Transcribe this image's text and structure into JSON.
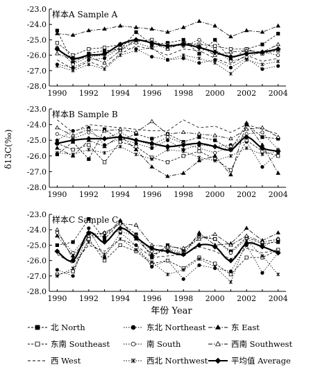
{
  "figure": {
    "ylabel": "δ13C(‰)",
    "xlabel": "年份 Year"
  },
  "chart_data": [
    {
      "type": "line",
      "title": "样本A Sample A",
      "ylim": [
        -28.0,
        -23.0
      ],
      "yticks": [
        -23.0,
        -24.0,
        -25.0,
        -26.0,
        -27.0,
        -28.0
      ],
      "xlim": [
        1989.5,
        2004.5
      ],
      "xticks": [
        1990,
        1992,
        1994,
        1996,
        1998,
        2000,
        2002,
        2004
      ],
      "x": [
        1990,
        1991,
        1992,
        1993,
        1994,
        1995,
        1996,
        1997,
        1998,
        1999,
        2000,
        2001,
        2002,
        2003,
        2004
      ],
      "series": [
        {
          "key": "north",
          "values": [
            -24.4,
            -26.5,
            -25.9,
            -25.7,
            -25.6,
            -24.5,
            -25.3,
            -25.2,
            -25.0,
            -25.9,
            -25.0,
            -26.3,
            -25.6,
            -25.3,
            -24.6
          ]
        },
        {
          "key": "northeast",
          "values": [
            -26.6,
            -26.8,
            -26.3,
            -26.2,
            -25.5,
            -25.6,
            -26.1,
            -26.3,
            -26.2,
            -26.5,
            -26.3,
            -26.8,
            -26.2,
            -26.9,
            -26.7
          ]
        },
        {
          "key": "east",
          "values": [
            -24.6,
            -24.7,
            -24.4,
            -24.3,
            -24.1,
            -24.2,
            -24.3,
            -24.5,
            -24.2,
            -23.8,
            -24.1,
            -24.8,
            -24.4,
            -24.5,
            -24.1
          ]
        },
        {
          "key": "southeast",
          "values": [
            -25.2,
            -26.0,
            -25.6,
            -25.5,
            -25.3,
            -25.1,
            -25.0,
            -25.5,
            -25.2,
            -25.3,
            -25.4,
            -25.6,
            -25.6,
            -25.9,
            -25.7
          ]
        },
        {
          "key": "south",
          "values": [
            -25.5,
            -26.6,
            -26.1,
            -26.0,
            -25.5,
            -25.2,
            -25.5,
            -25.3,
            -25.4,
            -25.0,
            -25.6,
            -26.4,
            -26.1,
            -25.8,
            -26.0
          ]
        },
        {
          "key": "southwest",
          "values": [
            -25.9,
            -26.3,
            -26.1,
            -26.5,
            -25.7,
            -25.0,
            -25.2,
            -25.6,
            -25.2,
            -25.4,
            -26.0,
            -25.8,
            -25.7,
            -25.8,
            -25.3
          ]
        },
        {
          "key": "west",
          "values": [
            -26.3,
            -26.9,
            -26.4,
            -26.8,
            -25.9,
            -25.4,
            -25.6,
            -26.0,
            -25.6,
            -25.7,
            -26.2,
            -26.6,
            -26.0,
            -26.4,
            -26.2
          ]
        },
        {
          "key": "northwest",
          "values": [
            -26.7,
            -27.0,
            -26.6,
            -26.9,
            -26.0,
            -25.7,
            -25.5,
            -26.3,
            -26.0,
            -26.2,
            -26.5,
            -27.2,
            -26.3,
            -26.6,
            -26.4
          ]
        },
        {
          "key": "average",
          "values": [
            -25.6,
            -26.2,
            -26.0,
            -25.9,
            -25.3,
            -25.0,
            -25.2,
            -25.4,
            -25.3,
            -25.5,
            -25.8,
            -26.1,
            -25.9,
            -25.8,
            -25.6
          ]
        }
      ]
    },
    {
      "type": "line",
      "title": "样本B Sample B",
      "ylim": [
        -28.0,
        -23.0
      ],
      "yticks": [
        -23.0,
        -24.0,
        -25.0,
        -26.0,
        -27.0,
        -28.0
      ],
      "xlim": [
        1989.5,
        2004.5
      ],
      "xticks": [
        1990,
        1992,
        1994,
        1996,
        1998,
        2000,
        2002,
        2004
      ],
      "x": [
        1990,
        1991,
        1992,
        1993,
        1994,
        1995,
        1996,
        1997,
        1998,
        1999,
        2000,
        2001,
        2002,
        2003,
        2004
      ],
      "series": [
        {
          "key": "north",
          "values": [
            -25.9,
            -25.1,
            -26.2,
            -24.3,
            -25.0,
            -24.6,
            -24.9,
            -24.6,
            -25.1,
            -24.8,
            -25.0,
            -25.6,
            -24.0,
            -24.8,
            -24.9
          ]
        },
        {
          "key": "northeast",
          "values": [
            -25.0,
            -24.4,
            -24.2,
            -25.3,
            -24.9,
            -25.2,
            -25.5,
            -25.0,
            -25.6,
            -25.3,
            -25.4,
            -25.3,
            -25.1,
            -26.7,
            -25.8
          ]
        },
        {
          "key": "east",
          "values": [
            -25.5,
            -26.0,
            -25.0,
            -25.4,
            -24.7,
            -25.6,
            -26.7,
            -27.3,
            -27.1,
            -26.3,
            -26.0,
            -27.2,
            -23.9,
            -25.3,
            -27.1
          ]
        },
        {
          "key": "southeast",
          "values": [
            -25.2,
            -25.6,
            -25.3,
            -26.4,
            -25.1,
            -25.4,
            -26.1,
            -26.4,
            -26.0,
            -25.7,
            -26.2,
            -26.9,
            -25.0,
            -25.7,
            -26.0
          ]
        },
        {
          "key": "south",
          "values": [
            -24.6,
            -24.9,
            -24.5,
            -24.9,
            -24.5,
            -25.0,
            -25.3,
            -24.8,
            -25.2,
            -25.5,
            -25.8,
            -25.4,
            -24.6,
            -24.5,
            -25.6
          ]
        },
        {
          "key": "southwest",
          "values": [
            -24.2,
            -24.7,
            -24.3,
            -24.4,
            -24.3,
            -24.5,
            -23.8,
            -24.6,
            -24.5,
            -24.6,
            -24.7,
            -24.9,
            -24.3,
            -24.2,
            -24.8
          ]
        },
        {
          "key": "west",
          "values": [
            -23.7,
            -24.5,
            -24.0,
            -24.1,
            -24.2,
            -24.3,
            -24.4,
            -24.4,
            -23.7,
            -24.2,
            -24.1,
            -24.5,
            -24.0,
            -24.3,
            -24.6
          ]
        },
        {
          "key": "northwest",
          "values": [
            -25.8,
            -25.9,
            -25.6,
            -25.8,
            -25.4,
            -25.9,
            -26.2,
            -25.6,
            -25.7,
            -26.1,
            -26.3,
            -26.0,
            -25.5,
            -25.9,
            -25.7
          ]
        },
        {
          "key": "average",
          "values": [
            -25.2,
            -25.0,
            -24.9,
            -24.9,
            -24.8,
            -25.0,
            -25.2,
            -25.4,
            -25.3,
            -25.2,
            -25.4,
            -25.6,
            -24.8,
            -25.5,
            -25.7
          ]
        }
      ]
    },
    {
      "type": "line",
      "title": "样本C Sample C",
      "ylim": [
        -28.0,
        -23.0
      ],
      "yticks": [
        -23.0,
        -24.0,
        -25.0,
        -26.0,
        -27.0,
        -28.0
      ],
      "xlim": [
        1989.5,
        2004.5
      ],
      "xticks": [
        1990,
        1992,
        1994,
        1996,
        1998,
        2000,
        2002,
        2004
      ],
      "x": [
        1990,
        1991,
        1992,
        1993,
        1994,
        1995,
        1996,
        1997,
        1998,
        1999,
        2000,
        2001,
        2002,
        2003,
        2004
      ],
      "series": [
        {
          "key": "north",
          "values": [
            -25.0,
            -24.8,
            -23.3,
            -24.6,
            -23.5,
            -24.3,
            -25.8,
            -25.0,
            -25.3,
            -24.4,
            -24.6,
            -25.4,
            -24.5,
            -24.9,
            -24.8
          ]
        },
        {
          "key": "northeast",
          "values": [
            -26.6,
            -27.0,
            -23.9,
            -25.8,
            -24.2,
            -25.0,
            -26.4,
            -26.0,
            -27.2,
            -26.3,
            -26.5,
            -26.7,
            -25.0,
            -26.8,
            -25.5
          ]
        },
        {
          "key": "east",
          "values": [
            -24.4,
            -25.7,
            -24.5,
            -24.4,
            -23.4,
            -24.6,
            -25.6,
            -25.3,
            -25.6,
            -24.2,
            -25.0,
            -24.9,
            -23.9,
            -24.7,
            -24.2
          ]
        },
        {
          "key": "southeast",
          "values": [
            -26.9,
            -26.7,
            -24.6,
            -26.0,
            -25.0,
            -25.4,
            -26.2,
            -26.0,
            -26.5,
            -25.8,
            -26.2,
            -26.9,
            -25.8,
            -25.8,
            -25.3
          ]
        },
        {
          "key": "south",
          "values": [
            -24.2,
            -25.5,
            -24.3,
            -24.2,
            -24.1,
            -24.4,
            -25.4,
            -25.2,
            -25.5,
            -24.5,
            -24.6,
            -25.5,
            -24.6,
            -25.1,
            -24.6
          ]
        },
        {
          "key": "southwest",
          "values": [
            -24.0,
            -25.9,
            -24.4,
            -24.2,
            -23.6,
            -23.7,
            -25.0,
            -25.1,
            -25.2,
            -24.6,
            -24.3,
            -25.0,
            -24.4,
            -24.8,
            -24.6
          ]
        },
        {
          "key": "west",
          "values": [
            -25.6,
            -26.2,
            -25.0,
            -25.4,
            -24.6,
            -25.0,
            -25.8,
            -25.7,
            -25.6,
            -25.1,
            -25.4,
            -25.9,
            -25.2,
            -25.5,
            -25.3
          ]
        },
        {
          "key": "northwest",
          "values": [
            -27.0,
            -26.5,
            -24.8,
            -25.6,
            -24.6,
            -25.3,
            -26.1,
            -26.9,
            -26.6,
            -25.9,
            -26.4,
            -27.4,
            -24.7,
            -25.7,
            -26.9
          ]
        },
        {
          "key": "average",
          "values": [
            -25.4,
            -26.0,
            -24.2,
            -24.8,
            -23.9,
            -24.5,
            -25.2,
            -25.4,
            -25.6,
            -25.0,
            -25.1,
            -26.0,
            -24.9,
            -25.1,
            -25.5
          ]
        }
      ]
    }
  ],
  "legend": [
    {
      "key": "north",
      "label": "北 North"
    },
    {
      "key": "northeast",
      "label": "东北 Northeast"
    },
    {
      "key": "east",
      "label": "东 East"
    },
    {
      "key": "southeast",
      "label": "东南 Southeast"
    },
    {
      "key": "south",
      "label": "南 South"
    },
    {
      "key": "southwest",
      "label": "西南 Southwest"
    },
    {
      "key": "west",
      "label": "西 West"
    },
    {
      "key": "northwest",
      "label": "西北 Northwest"
    },
    {
      "key": "average",
      "label": "平均值 Average"
    }
  ],
  "styles": {
    "north": {
      "marker": "square",
      "fill": true,
      "dash": "3,2",
      "color": "#000000"
    },
    "northeast": {
      "marker": "circle",
      "fill": true,
      "dash": "1.5,2",
      "color": "#000000"
    },
    "east": {
      "marker": "triangle",
      "fill": true,
      "dash": "6,2,1.5,2",
      "color": "#000000"
    },
    "southeast": {
      "marker": "square",
      "fill": false,
      "dash": "3,2",
      "color": "#000000"
    },
    "south": {
      "marker": "circle",
      "fill": false,
      "dash": "1.5,2",
      "color": "#000000"
    },
    "southwest": {
      "marker": "triangle",
      "fill": false,
      "dash": "6,2,1.5,2",
      "color": "#000000"
    },
    "west": {
      "marker": "none",
      "fill": false,
      "dash": "4,3",
      "color": "#000000"
    },
    "northwest": {
      "marker": "star",
      "fill": false,
      "dash": "1.5,2",
      "color": "#000000"
    },
    "average": {
      "marker": "diamond",
      "fill": true,
      "dash": "",
      "color": "#000000"
    }
  }
}
